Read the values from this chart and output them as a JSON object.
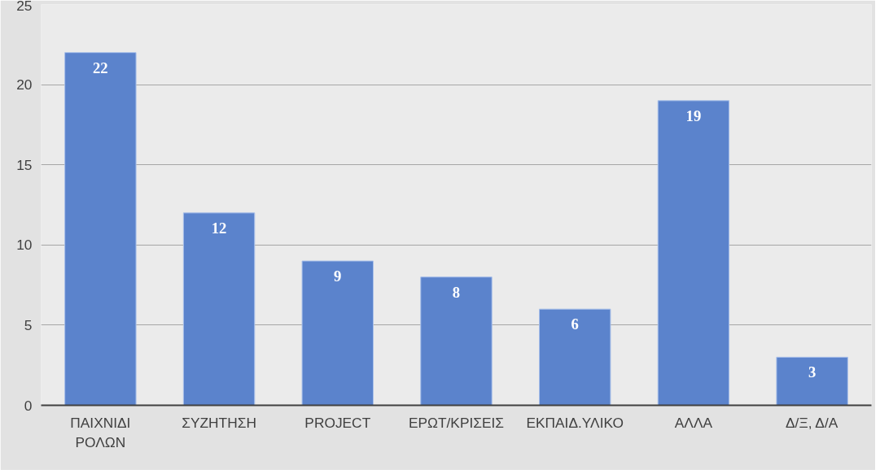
{
  "chart_data": {
    "type": "bar",
    "categories": [
      "ΠΑΙΧΝΙΔΙ ΡΟΛΩΝ",
      "ΣΥΖΗΤΗΣΗ",
      "PROJECT",
      "ΕΡΩΤ/ΚΡΙΣΕΙΣ",
      "ΕΚΠΑΙΔ.ΥΛΙΚΟ",
      "ΑΛΛΑ",
      "Δ/Ξ, Δ/Α"
    ],
    "values": [
      22,
      12,
      9,
      8,
      6,
      19,
      3
    ],
    "color": "#5b83cc",
    "ylim": [
      0,
      25
    ],
    "yticks": [
      0,
      5,
      10,
      15,
      20,
      25
    ],
    "grid": "y",
    "data_labels": true
  }
}
